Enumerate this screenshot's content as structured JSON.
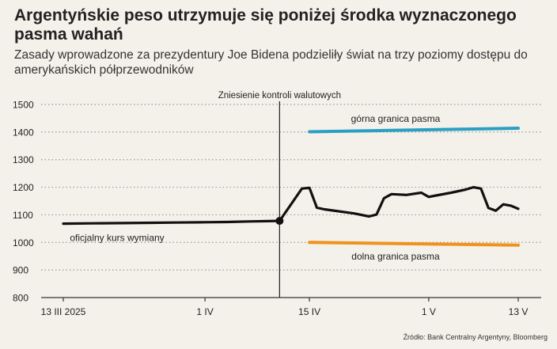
{
  "title": "Argentyńskie peso utrzymuje się poniżej środka wyznaczonego pasma wahań",
  "subtitle": "Zasady wprowadzone za prezydentury Joe Bidena podzieliły świat na trzy poziomy dostępu do amerykańskich półprzewodników",
  "source": "Źródło: Bank Centralny Argentyny, Bloomberg",
  "colors": {
    "rate": "#111111",
    "upper": "#2a9fc4",
    "lower": "#f0931e",
    "grid": "#9a9a9a",
    "annotation": "#222222"
  },
  "chart_data": {
    "type": "line",
    "ylim": [
      800,
      1500
    ],
    "yticks": [
      800,
      900,
      1000,
      1100,
      1200,
      1300,
      1400,
      1500
    ],
    "xlim": [
      "2025-03-13",
      "2025-05-13"
    ],
    "xticks": [
      {
        "date": "2025-03-13",
        "label": "13 III 2025"
      },
      {
        "date": "2025-04-01",
        "label": "1 IV"
      },
      {
        "date": "2025-04-15",
        "label": "15 IV"
      },
      {
        "date": "2025-05-01",
        "label": "1 V"
      },
      {
        "date": "2025-05-13",
        "label": "13 V"
      }
    ],
    "grid": "horizontal-dotted",
    "annotation": {
      "date": "2025-04-11",
      "label": "Zniesienie kontroli walutowych"
    },
    "series": [
      {
        "name": "oficjalny kurs wymiany",
        "color_key": "rate",
        "points": [
          [
            "2025-03-13",
            1068
          ],
          [
            "2025-03-17",
            1069
          ],
          [
            "2025-03-21",
            1070
          ],
          [
            "2025-03-25",
            1071
          ],
          [
            "2025-03-28",
            1072
          ],
          [
            "2025-04-01",
            1073
          ],
          [
            "2025-04-04",
            1074
          ],
          [
            "2025-04-07",
            1076
          ],
          [
            "2025-04-11",
            1078
          ],
          [
            "2025-04-14",
            1195
          ],
          [
            "2025-04-15",
            1198
          ],
          [
            "2025-04-16",
            1126
          ],
          [
            "2025-04-17",
            1120
          ],
          [
            "2025-04-21",
            1105
          ],
          [
            "2025-04-23",
            1094
          ],
          [
            "2025-04-24",
            1101
          ],
          [
            "2025-04-25",
            1160
          ],
          [
            "2025-04-26",
            1175
          ],
          [
            "2025-04-28",
            1172
          ],
          [
            "2025-04-30",
            1180
          ],
          [
            "2025-05-01",
            1165
          ],
          [
            "2025-05-02",
            1170
          ],
          [
            "2025-05-04",
            1180
          ],
          [
            "2025-05-06",
            1192
          ],
          [
            "2025-05-07",
            1200
          ],
          [
            "2025-05-08",
            1195
          ],
          [
            "2025-05-09",
            1125
          ],
          [
            "2025-05-10",
            1115
          ],
          [
            "2025-05-11",
            1138
          ],
          [
            "2025-05-12",
            1133
          ],
          [
            "2025-05-13",
            1122
          ]
        ]
      },
      {
        "name": "górna granica pasma",
        "color_key": "upper",
        "points": [
          [
            "2025-04-15",
            1401
          ],
          [
            "2025-05-13",
            1414
          ]
        ]
      },
      {
        "name": "dolna granica pasma",
        "color_key": "lower",
        "points": [
          [
            "2025-04-15",
            1000
          ],
          [
            "2025-05-13",
            990
          ]
        ]
      }
    ]
  }
}
